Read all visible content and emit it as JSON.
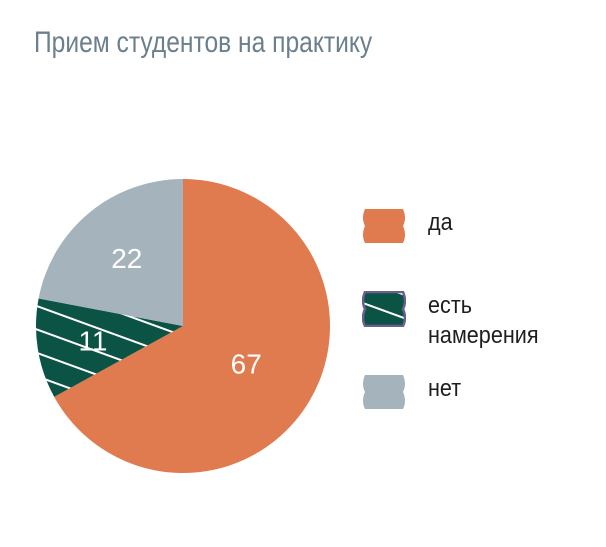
{
  "title": "Прием студентов на практику",
  "chart_data": {
    "type": "pie",
    "title": "Прием студентов на практику",
    "categories": [
      "да",
      "есть намерения",
      "нет"
    ],
    "values": [
      67,
      11,
      22
    ],
    "colors": [
      "#e07a4f",
      "#0b5345",
      "#a4b3bc"
    ],
    "start_angle_deg": 0,
    "direction": "clockwise",
    "legend_position": "right",
    "data_labels": [
      "67",
      "11",
      "22"
    ]
  },
  "legend": [
    {
      "label": "да",
      "color": "#e07a4f"
    },
    {
      "label": "есть\nнамерения",
      "color": "#0b5345",
      "hatched": true
    },
    {
      "label": "нет",
      "color": "#a4b3bc"
    }
  ]
}
